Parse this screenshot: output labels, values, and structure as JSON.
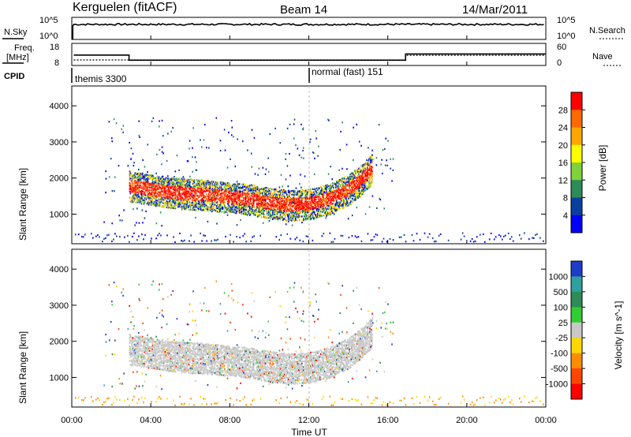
{
  "header": {
    "station": "Kerguelen (fitACF)",
    "beam": "Beam 14",
    "date": "14/Mar/2011"
  },
  "noise_panel": {
    "left_label": "N.Sky",
    "right_label": "N.Search",
    "left_ticks": [
      "10^5",
      "10^0"
    ],
    "right_ticks": [
      "10^5",
      "10^0"
    ]
  },
  "freq_panel": {
    "left_label_line1": "Freq.",
    "left_label_line2": "[MHz]",
    "left_ticks": [
      "18",
      "8"
    ],
    "right_label": "Nave",
    "right_ticks": [
      "60",
      "0"
    ]
  },
  "cpid_panel": {
    "label": "CPID",
    "modes": [
      "themis 3300",
      "normal (fast) 151"
    ]
  },
  "power_panel": {
    "ylabel": "Slant Range [km]",
    "yticks": [
      "4000",
      "3000",
      "2000",
      "1000"
    ],
    "colorbar_label": "Power [dB]",
    "colorbar_ticks": [
      "28",
      "24",
      "20",
      "16",
      "12",
      "8",
      "4"
    ],
    "colorbar_colors": [
      "#ff0000",
      "#ff6a00",
      "#ffa500",
      "#ffff00",
      "#7fd23c",
      "#2e8b57",
      "#0a3fa0",
      "#0000ff"
    ]
  },
  "velocity_panel": {
    "ylabel": "Slant Range [km]",
    "yticks": [
      "4000",
      "3000",
      "2000",
      "1000"
    ],
    "colorbar_label": "Velocity [m s^-1]",
    "colorbar_ticks": [
      "1000",
      "500",
      "100",
      "25",
      "-25",
      "-100",
      "-500",
      "-1000"
    ],
    "colorbar_colors": [
      "#1e3cc8",
      "#2ea0a0",
      "#2e8b57",
      "#32cd32",
      "#c8c8c8",
      "#ffd700",
      "#ff8c00",
      "#ff4500",
      "#ff0000"
    ]
  },
  "xaxis": {
    "label": "Time UT",
    "ticks": [
      "00:00",
      "04:00",
      "08:00",
      "12:00",
      "16:00",
      "20:00",
      "00:00"
    ]
  },
  "chart_data": {
    "type": "heatmap",
    "title": "Kerguelen (fitACF) Beam 14 14/Mar/2011",
    "xlabel": "Time UT",
    "xlim_hours": [
      0,
      24
    ],
    "ylabel": "Slant Range [km]",
    "ylim_km": [
      180,
      4550
    ],
    "cpid_modes": [
      {
        "name": "themis 3300",
        "start_hour": 0,
        "end_hour": 12
      },
      {
        "name": "normal (fast) 151",
        "start_hour": 12,
        "end_hour": 24
      }
    ],
    "frequency_mhz": {
      "times": [
        0.1,
        2.9,
        2.9,
        16.9,
        16.9,
        24
      ],
      "values": [
        12.7,
        12.7,
        10.4,
        10.4,
        13.2,
        13.2
      ]
    },
    "scatter_band_centre_km": {
      "times": [
        2.9,
        5,
        7,
        9,
        10,
        11,
        12,
        13,
        14,
        14.6,
        15.2
      ],
      "values": [
        1800,
        1620,
        1540,
        1430,
        1330,
        1270,
        1300,
        1430,
        1700,
        1950,
        2300
      ]
    },
    "power_scale": {
      "label": "Power [dB]",
      "ticks": [
        4,
        8,
        12,
        16,
        20,
        24,
        28
      ]
    },
    "velocity_scale": {
      "label": "Velocity [m s^-1]",
      "ticks": [
        -1000,
        -500,
        -100,
        -25,
        25,
        100,
        500,
        1000
      ]
    }
  }
}
